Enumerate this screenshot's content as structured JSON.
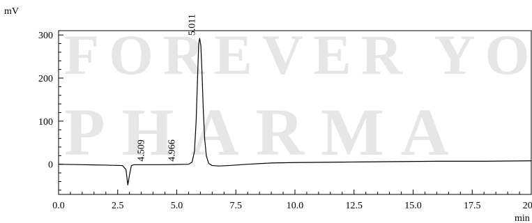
{
  "watermark": {
    "line1": "FOREVER YO",
    "line2": "PHARMA",
    "color": "#e6e6e6"
  },
  "chart_data": {
    "type": "line",
    "title": "",
    "ylabel": "mV",
    "xlabel": "min",
    "xlim": [
      0,
      20
    ],
    "ylim": [
      -70,
      310
    ],
    "x_ticks": [
      0,
      2.5,
      5,
      7.5,
      10,
      12.5,
      15,
      17.5,
      20
    ],
    "x_tick_labels": [
      "0.0",
      "2.5",
      "5.0",
      "7.5",
      "10.0",
      "12.5",
      "15.0",
      "17.5",
      "20.0"
    ],
    "y_ticks": [
      0,
      100,
      200,
      300
    ],
    "y_tick_labels": [
      "0",
      "100",
      "200",
      "300"
    ],
    "grid": false,
    "line_color": "#000000",
    "series": [
      {
        "x": [
          0.0,
          1.0,
          2.0,
          2.7,
          2.85,
          2.93,
          3.0,
          3.08,
          3.2,
          3.5,
          4.0,
          4.5,
          5.0,
          5.5,
          5.65,
          5.75,
          5.82,
          5.88,
          5.93,
          5.97,
          6.02,
          6.07,
          6.12,
          6.18,
          6.25,
          6.35,
          6.5,
          6.8,
          7.2,
          8.0,
          9.0,
          10.0,
          12.0,
          14.0,
          16.0,
          18.0,
          20.0
        ],
        "y": [
          0,
          -1,
          -2,
          -3,
          -12,
          -48,
          -25,
          -3,
          -1,
          -1,
          -1,
          -1,
          -0.5,
          0,
          5,
          30,
          100,
          200,
          280,
          292,
          275,
          210,
          130,
          60,
          20,
          2,
          -3,
          -4,
          -3,
          0,
          3,
          4,
          5,
          6,
          7,
          7,
          8
        ]
      }
    ],
    "peak_labels": [
      {
        "label": "4.509",
        "x": 3.5,
        "y": 0
      },
      {
        "label": "4.966",
        "x": 4.8,
        "y": 0
      },
      {
        "label": "5.011",
        "x": 5.65,
        "y": 292
      }
    ]
  }
}
